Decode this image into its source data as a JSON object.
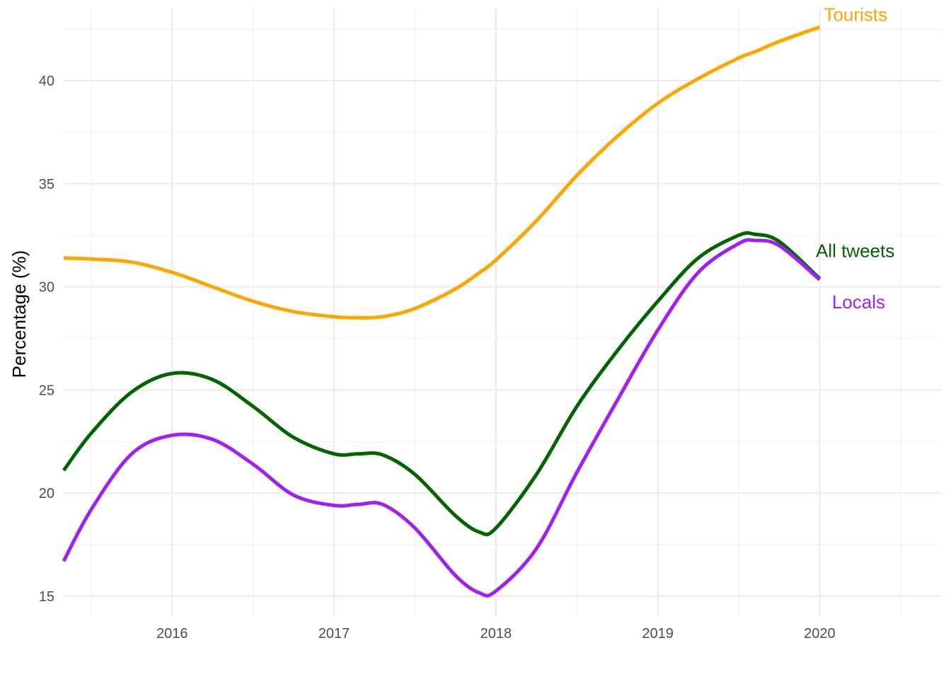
{
  "chart_data": {
    "type": "line",
    "title": "",
    "xlabel": "",
    "ylabel": "Percentage (%)",
    "xlim": [
      2015.33,
      2020.75
    ],
    "ylim": [
      14.0,
      43.5
    ],
    "x_ticks": [
      2016,
      2017,
      2018,
      2019,
      2020
    ],
    "y_ticks": [
      15,
      20,
      25,
      30,
      35,
      40
    ],
    "x_tick_labels": [
      "2016",
      "2017",
      "2018",
      "2019",
      "2020"
    ],
    "y_tick_labels": [
      "15",
      "20",
      "25",
      "30",
      "35",
      "40"
    ],
    "grid": true,
    "legend": "none (direct labels at line ends)",
    "x": [
      2015.33,
      2015.5,
      2015.75,
      2016.0,
      2016.25,
      2016.5,
      2016.75,
      2017.0,
      2017.15,
      2017.3,
      2017.5,
      2017.75,
      2017.9,
      2018.0,
      2018.25,
      2018.5,
      2018.75,
      2019.0,
      2019.25,
      2019.5,
      2019.6,
      2019.75,
      2020.0
    ],
    "series": [
      {
        "name": "Tourists",
        "color": "#FFA500",
        "values": [
          31.4,
          31.35,
          31.2,
          30.7,
          30.0,
          29.3,
          28.8,
          28.55,
          28.5,
          28.55,
          28.95,
          29.9,
          30.7,
          31.3,
          33.2,
          35.4,
          37.3,
          38.9,
          40.1,
          41.1,
          41.4,
          41.9,
          42.6
        ]
      },
      {
        "name": "All tweets",
        "color": "#006400",
        "values": [
          21.1,
          22.9,
          24.9,
          25.8,
          25.5,
          24.2,
          22.7,
          21.9,
          21.9,
          21.85,
          20.9,
          18.9,
          18.1,
          18.3,
          20.9,
          24.2,
          26.9,
          29.3,
          31.4,
          32.5,
          32.55,
          32.2,
          30.4
        ]
      },
      {
        "name": "Locals",
        "color": "#A020F0",
        "values": [
          16.7,
          19.2,
          21.9,
          22.8,
          22.6,
          21.4,
          19.9,
          19.4,
          19.45,
          19.45,
          18.3,
          16.0,
          15.15,
          15.25,
          17.3,
          21.0,
          24.5,
          27.9,
          30.7,
          32.1,
          32.25,
          32.0,
          30.35
        ]
      }
    ],
    "annotations": [
      {
        "text": "Tourists",
        "x": 2020.0,
        "y": 42.9,
        "color": "#FFA500"
      },
      {
        "text": "All tweets",
        "x": 2019.95,
        "y": 31.45,
        "color": "#006400"
      },
      {
        "text": "Locals",
        "x": 2020.05,
        "y": 28.95,
        "color": "#A020F0"
      }
    ]
  }
}
